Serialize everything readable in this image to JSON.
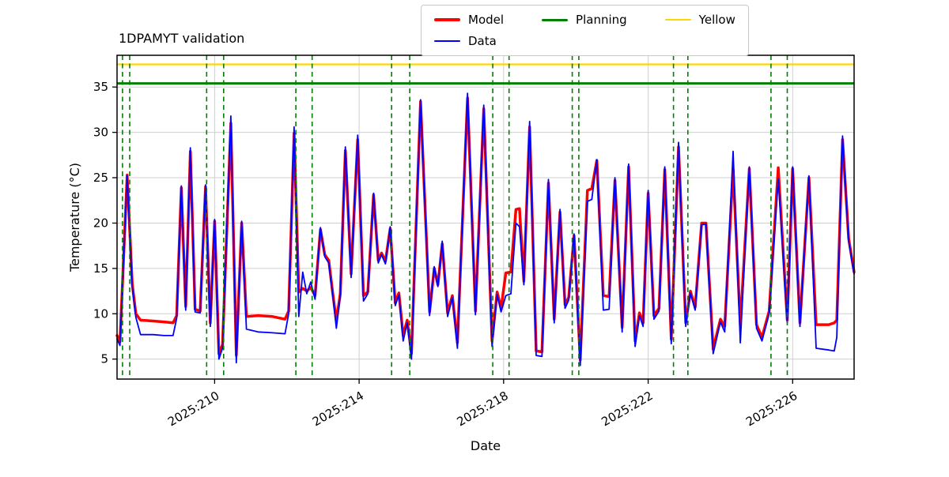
{
  "legend": {
    "position": "top-center",
    "entries": [
      {
        "label": "Model",
        "color": "#ff0000",
        "thickness": 4,
        "row": 1,
        "col": 1
      },
      {
        "label": "Data",
        "color": "#0000ff",
        "thickness": 2,
        "row": 2,
        "col": 1
      },
      {
        "label": "Planning",
        "color": "#008000",
        "thickness": 3,
        "row": 1,
        "col": 2
      },
      {
        "label": "Yellow",
        "color": "#ffd700",
        "thickness": 2,
        "row": 1,
        "col": 3
      }
    ]
  },
  "chart_data": {
    "type": "line",
    "title": "1DPAMYT validation",
    "xlabel": "Date",
    "ylabel": "Temperature (°C)",
    "grid": true,
    "grid_color": "#cfcfcf",
    "xlim": [
      207.3,
      227.7
    ],
    "ylim": [
      2.8,
      38.5
    ],
    "xticks": [
      210,
      214,
      218,
      222,
      226
    ],
    "xtick_labels": [
      "2025:210",
      "2025:214",
      "2025:218",
      "2025:222",
      "2025:226"
    ],
    "yticks": [
      5,
      10,
      15,
      20,
      25,
      30,
      35
    ],
    "x": [
      207.3,
      207.38,
      207.58,
      207.72,
      207.82,
      207.95,
      208.3,
      208.6,
      208.85,
      208.95,
      209.08,
      209.2,
      209.33,
      209.46,
      209.6,
      209.75,
      209.88,
      210.0,
      210.12,
      210.22,
      210.45,
      210.6,
      210.75,
      210.88,
      211.2,
      211.6,
      211.95,
      212.05,
      212.2,
      212.33,
      212.44,
      212.55,
      212.66,
      212.78,
      212.93,
      213.05,
      213.16,
      213.27,
      213.37,
      213.48,
      213.62,
      213.78,
      213.96,
      214.12,
      214.24,
      214.4,
      214.53,
      214.62,
      214.73,
      214.86,
      215.0,
      215.1,
      215.22,
      215.33,
      215.45,
      215.7,
      215.95,
      216.08,
      216.18,
      216.3,
      216.45,
      216.58,
      216.72,
      217.0,
      217.22,
      217.45,
      217.68,
      217.82,
      217.93,
      218.06,
      218.2,
      218.34,
      218.44,
      218.56,
      218.72,
      218.9,
      219.06,
      219.24,
      219.4,
      219.56,
      219.7,
      219.8,
      219.95,
      220.12,
      220.32,
      220.44,
      220.58,
      220.76,
      220.92,
      221.08,
      221.28,
      221.46,
      221.64,
      221.76,
      221.86,
      222.0,
      222.16,
      222.3,
      222.46,
      222.64,
      222.84,
      223.04,
      223.17,
      223.3,
      223.48,
      223.6,
      223.8,
      224.0,
      224.12,
      224.35,
      224.55,
      224.8,
      225.0,
      225.15,
      225.35,
      225.6,
      225.85,
      226.0,
      226.2,
      226.45,
      226.65,
      227.0,
      227.15,
      227.22,
      227.38,
      227.55,
      227.7
    ],
    "series": [
      {
        "name": "Model",
        "color": "#ff0000",
        "linewidth": 3.5,
        "values": [
          7.6,
          6.9,
          25.3,
          13.3,
          10.0,
          9.3,
          9.2,
          9.1,
          9.0,
          9.8,
          23.9,
          10.8,
          27.9,
          10.5,
          10.3,
          24.0,
          9.0,
          20.2,
          5.6,
          6.6,
          31.0,
          5.4,
          20.0,
          9.7,
          9.8,
          9.7,
          9.4,
          10.3,
          29.9,
          12.4,
          12.8,
          12.5,
          12.9,
          12.0,
          19.3,
          16.5,
          15.9,
          12.3,
          9.2,
          12.2,
          28.0,
          14.4,
          29.2,
          12.0,
          12.4,
          23.1,
          15.9,
          16.7,
          15.8,
          19.4,
          11.2,
          12.3,
          7.6,
          9.3,
          5.6,
          33.4,
          10.2,
          15.0,
          13.2,
          17.7,
          10.1,
          12.0,
          6.8,
          33.8,
          10.3,
          32.6,
          7.0,
          12.4,
          10.6,
          14.5,
          14.6,
          21.5,
          21.6,
          13.6,
          30.6,
          5.9,
          5.8,
          24.4,
          9.4,
          21.2,
          11.0,
          11.8,
          18.6,
          4.9,
          23.6,
          23.8,
          26.9,
          12.0,
          11.9,
          24.7,
          8.5,
          26.2,
          7.0,
          10.1,
          9.0,
          23.3,
          9.8,
          10.6,
          25.9,
          7.2,
          28.4,
          9.0,
          12.5,
          10.7,
          20.0,
          20.0,
          6.1,
          9.4,
          8.6,
          25.9,
          8.8,
          26.0,
          8.8,
          7.4,
          10.3,
          26.1,
          9.3,
          26.0,
          9.0,
          25.0,
          8.8,
          8.8,
          9.0,
          9.3,
          29.2,
          18.3,
          14.6
        ]
      },
      {
        "name": "Data",
        "color": "#0000ff",
        "linewidth": 1.8,
        "values": [
          7.2,
          6.5,
          25.2,
          13.0,
          9.6,
          7.7,
          7.7,
          7.6,
          7.6,
          9.5,
          24.1,
          10.4,
          28.3,
          10.2,
          10.1,
          24.2,
          8.6,
          20.4,
          5.0,
          6.2,
          31.8,
          4.6,
          20.2,
          8.3,
          8.0,
          7.9,
          7.8,
          10.0,
          30.6,
          9.7,
          14.6,
          12.2,
          13.5,
          11.6,
          19.5,
          16.3,
          15.6,
          12.1,
          8.4,
          12.0,
          28.4,
          14.0,
          29.7,
          11.4,
          12.2,
          23.3,
          15.6,
          16.5,
          15.5,
          19.6,
          10.9,
          12.1,
          7.0,
          9.0,
          5.0,
          33.6,
          9.8,
          15.2,
          13.0,
          18.0,
          9.7,
          11.8,
          6.2,
          34.3,
          9.9,
          33.0,
          6.4,
          12.1,
          10.2,
          12.0,
          12.2,
          20.0,
          19.6,
          13.2,
          31.2,
          5.4,
          5.3,
          24.8,
          9.0,
          21.5,
          10.6,
          11.5,
          18.8,
          4.3,
          22.4,
          22.6,
          27.0,
          10.4,
          10.5,
          25.0,
          8.0,
          26.5,
          6.4,
          9.8,
          8.6,
          23.6,
          9.4,
          10.3,
          26.2,
          6.7,
          28.9,
          8.6,
          12.3,
          10.4,
          19.8,
          19.9,
          5.6,
          9.1,
          8.0,
          27.9,
          6.8,
          26.2,
          8.4,
          7.0,
          10.0,
          24.9,
          9.0,
          26.2,
          8.6,
          25.2,
          6.2,
          6.0,
          5.9,
          7.4,
          29.6,
          18.0,
          14.4
        ]
      }
    ],
    "hlines": [
      {
        "name": "Planning",
        "y": 35.4,
        "color": "#008000",
        "linewidth": 3
      },
      {
        "name": "Yellow",
        "y": 37.5,
        "color": "#ffd700",
        "linewidth": 2.2
      }
    ],
    "vlines": {
      "color": "#008000",
      "style": "dashed",
      "linewidth": 1.6,
      "x": [
        207.45,
        207.65,
        209.78,
        210.25,
        212.25,
        212.7,
        214.9,
        215.4,
        217.7,
        218.15,
        219.9,
        220.08,
        222.7,
        223.1,
        225.4,
        225.85
      ]
    },
    "legend_entries": [
      "Model",
      "Data",
      "Planning",
      "Yellow"
    ]
  }
}
